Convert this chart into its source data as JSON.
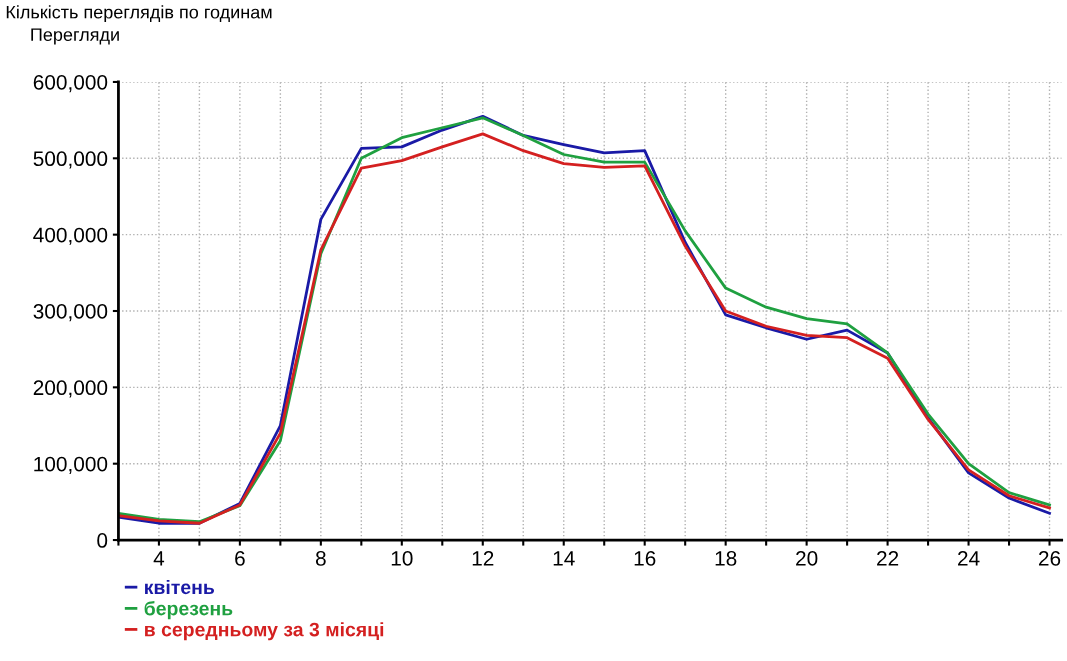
{
  "chart_data": {
    "type": "line",
    "title": "Кількість переглядів по годинам",
    "ylabel": "Перегляди",
    "x": [
      3,
      4,
      5,
      6,
      7,
      8,
      9,
      10,
      11,
      12,
      13,
      14,
      15,
      16,
      17,
      18,
      19,
      20,
      21,
      22,
      23,
      24,
      25,
      26
    ],
    "series": [
      {
        "name": "квітень",
        "color": "#1a1aa6",
        "values": [
          30000,
          22000,
          22000,
          48000,
          150000,
          420000,
          513000,
          515000,
          537000,
          555000,
          530000,
          518000,
          507000,
          510000,
          390000,
          295000,
          278000,
          263000,
          275000,
          245000,
          160000,
          88000,
          55000,
          35000
        ]
      },
      {
        "name": "березень",
        "color": "#1fa040",
        "values": [
          35000,
          27000,
          24000,
          45000,
          130000,
          375000,
          500000,
          527000,
          540000,
          553000,
          530000,
          505000,
          495000,
          495000,
          405000,
          330000,
          305000,
          290000,
          283000,
          245000,
          165000,
          100000,
          62000,
          46000
        ]
      },
      {
        "name": "в середньому за 3 місяці",
        "color": "#d42020",
        "values": [
          32000,
          25000,
          22000,
          46000,
          140000,
          380000,
          487000,
          497000,
          515000,
          532000,
          510000,
          493000,
          488000,
          490000,
          385000,
          300000,
          280000,
          268000,
          265000,
          238000,
          158000,
          92000,
          58000,
          42000
        ]
      }
    ],
    "xlim": [
      3,
      26.3
    ],
    "xticks": [
      {
        "value": 3,
        "label": null
      },
      4,
      {
        "value": 5,
        "label": null
      },
      6,
      {
        "value": 7,
        "label": null
      },
      8,
      {
        "value": 9,
        "label": null
      },
      10,
      {
        "value": 11,
        "label": null
      },
      12,
      {
        "value": 13,
        "label": null
      },
      14,
      {
        "value": 15,
        "label": null
      },
      16,
      {
        "value": 17,
        "label": null
      },
      18,
      {
        "value": 19,
        "label": null
      },
      20,
      {
        "value": 21,
        "label": null
      },
      22,
      {
        "value": 23,
        "label": null
      },
      24,
      {
        "value": 25,
        "label": null
      },
      26
    ],
    "ylim": [
      0,
      600000
    ],
    "yticks": [
      0,
      {
        "value": 100000,
        "label": "100,000"
      },
      {
        "value": 200000,
        "label": "200,000"
      },
      {
        "value": 300000,
        "label": "300,000"
      },
      {
        "value": 400000,
        "label": "400,000"
      },
      {
        "value": 500000,
        "label": "500,000"
      },
      {
        "value": 600000,
        "label": "600,000"
      }
    ],
    "grid": true,
    "legend": "bottom",
    "line_style": "solid",
    "marker": "none"
  }
}
